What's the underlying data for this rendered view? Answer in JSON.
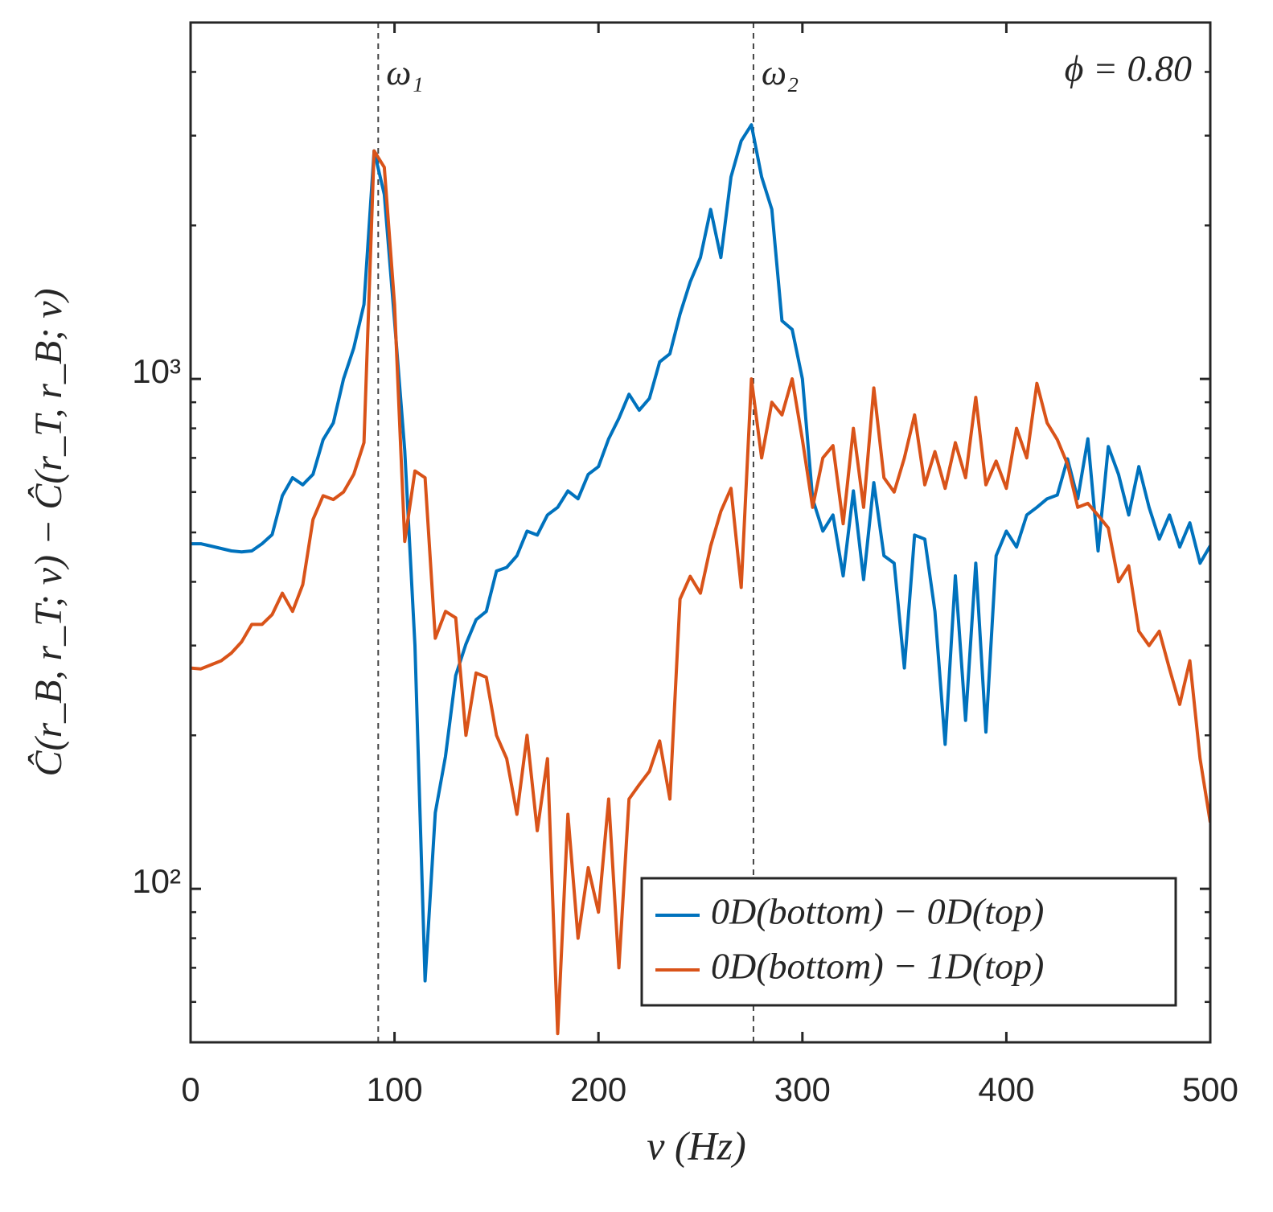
{
  "chart_data": {
    "type": "line",
    "xlabel": "ν (Hz)",
    "ylabel": "Ĉ(r_B, r_T; ν) − Ĉ(r_T, r_B; ν)",
    "annotation": "ϕ = 0.80",
    "legend": "lower right",
    "log_y": true,
    "xlim": [
      0,
      500
    ],
    "ylim": [
      50,
      5000
    ],
    "xticks": [
      0,
      100,
      200,
      300,
      400,
      500
    ],
    "yticks": [
      {
        "value": 100,
        "label": "10²"
      },
      {
        "value": 1000,
        "label": "10³"
      }
    ],
    "yminorticks": [
      50,
      60,
      70,
      80,
      90,
      200,
      300,
      400,
      500,
      600,
      700,
      800,
      900,
      2000,
      3000,
      4000,
      5000
    ],
    "vlines": [
      {
        "x": 92,
        "label": "ω₁"
      },
      {
        "x": 276,
        "label": "ω₂"
      }
    ],
    "x": [
      0,
      5,
      10,
      15,
      20,
      25,
      30,
      35,
      40,
      45,
      50,
      55,
      60,
      65,
      70,
      75,
      80,
      85,
      90,
      95,
      100,
      105,
      110,
      115,
      120,
      125,
      130,
      135,
      140,
      145,
      150,
      155,
      160,
      165,
      170,
      175,
      180,
      185,
      190,
      195,
      200,
      205,
      210,
      215,
      220,
      225,
      230,
      235,
      240,
      245,
      250,
      255,
      260,
      265,
      270,
      275,
      280,
      285,
      290,
      295,
      300,
      305,
      310,
      315,
      320,
      325,
      330,
      335,
      340,
      345,
      350,
      355,
      360,
      365,
      370,
      375,
      380,
      385,
      390,
      395,
      400,
      405,
      410,
      415,
      420,
      425,
      430,
      435,
      440,
      445,
      450,
      455,
      460,
      465,
      470,
      475,
      480,
      485,
      490,
      495,
      500
    ],
    "series": [
      {
        "name": "0D(bottom) − 0D(top)",
        "color": "#0072BD",
        "values": [
          475,
          475,
          470,
          465,
          460,
          458,
          460,
          475,
          495,
          590,
          640,
          620,
          650,
          760,
          820,
          1000,
          1150,
          1400,
          2800,
          2300,
          1300,
          724,
          300,
          66,
          141,
          182,
          262,
          302,
          337,
          350,
          420,
          427,
          450,
          503,
          494,
          541,
          560,
          603,
          582,
          650,
          673,
          763,
          837,
          933,
          868,
          916,
          1080,
          1120,
          1340,
          1550,
          1730,
          2150,
          1730,
          2490,
          2930,
          3150,
          2490,
          2150,
          1300,
          1250,
          1000,
          582,
          503,
          541,
          411,
          603,
          404,
          626,
          450,
          435,
          271,
          494,
          485,
          350,
          192,
          411,
          214,
          435,
          203,
          450,
          503,
          468,
          541,
          560,
          582,
          592,
          697,
          582,
          763,
          460,
          737,
          650,
          541,
          673,
          560,
          485,
          541,
          468,
          522,
          435,
          471
        ]
      },
      {
        "name": "0D(bottom) − 1D(top)",
        "color": "#D95319",
        "values": [
          271,
          270,
          275,
          280,
          290,
          305,
          330,
          330,
          345,
          380,
          350,
          395,
          530,
          590,
          580,
          600,
          650,
          750,
          2800,
          2600,
          1400,
          480,
          660,
          640,
          310,
          350,
          340,
          200,
          265,
          260,
          200,
          180,
          140,
          200,
          130,
          180,
          52,
          140,
          80,
          110,
          90,
          150,
          70,
          150,
          160,
          170,
          195,
          150,
          370,
          410,
          380,
          470,
          550,
          610,
          390,
          1000,
          700,
          900,
          850,
          1000,
          760,
          560,
          700,
          740,
          520,
          800,
          560,
          960,
          640,
          600,
          700,
          850,
          620,
          720,
          610,
          750,
          640,
          920,
          620,
          690,
          610,
          800,
          700,
          980,
          820,
          760,
          680,
          560,
          570,
          540,
          510,
          400,
          430,
          320,
          300,
          320,
          270,
          230,
          280,
          180,
          135
        ]
      }
    ]
  }
}
